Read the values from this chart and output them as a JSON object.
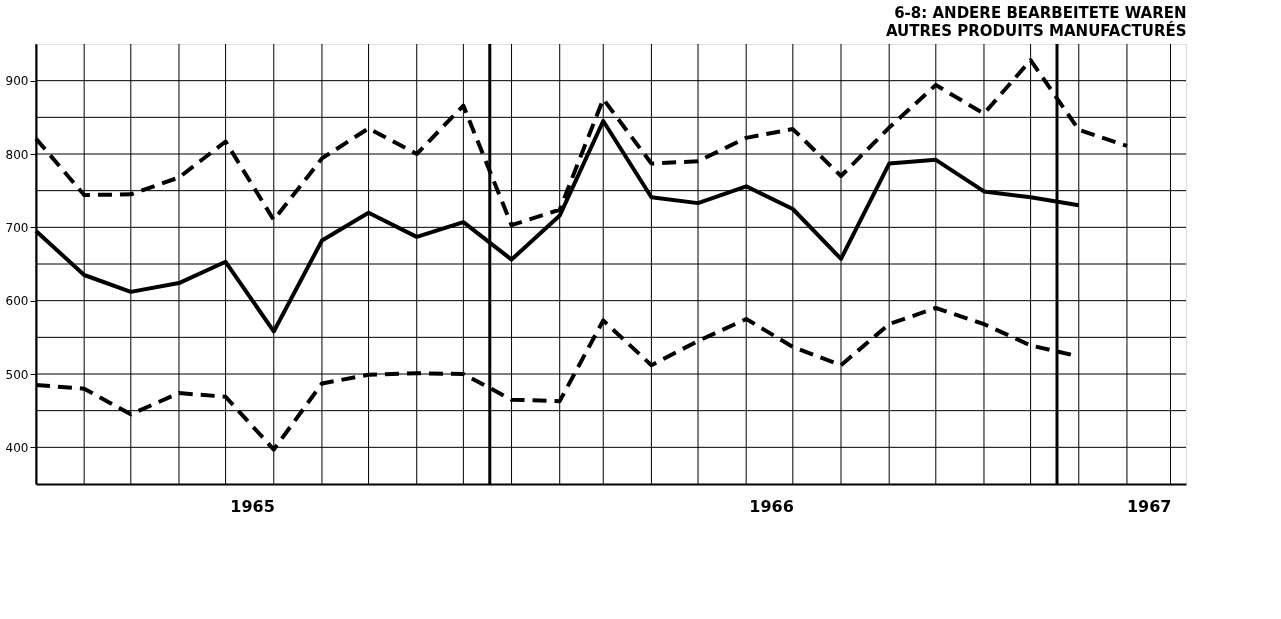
{
  "chart_data": {
    "type": "line",
    "title": "6-8: ANDERE BEARBEITETE WAREN",
    "subtitle": "AUTRES PRODUITS MANUFACTURÉS",
    "x": [
      "1965-03-15",
      "1965-04-15",
      "1965-05-15",
      "1965-06-15",
      "1965-07-15",
      "1965-08-15",
      "1965-09-15",
      "1965-10-15",
      "1965-11-15",
      "1965-12-15",
      "1966-01-15",
      "1966-02-15",
      "1966-03-15",
      "1966-04-15",
      "1966-05-15",
      "1966-06-15",
      "1966-07-15",
      "1966-08-15",
      "1966-09-15",
      "1966-10-15",
      "1966-11-15",
      "1966-12-15",
      "1967-01-15",
      "1967-02-15"
    ],
    "series": [
      {
        "color": "#000000",
        "line_style": "dashed",
        "values": [
          821,
          744,
          745,
          768,
          817,
          710,
          794,
          835,
          800,
          866,
          703,
          724,
          875,
          787,
          790,
          822,
          834,
          770,
          836,
          894,
          855,
          928,
          833,
          811
        ]
      },
      {
        "color": "#000000",
        "line_style": "solid",
        "values": [
          695,
          635,
          612,
          624,
          653,
          558,
          682,
          720,
          687,
          707,
          656,
          716,
          845,
          741,
          733,
          756,
          725,
          657,
          787,
          792,
          749,
          741,
          730,
          null
        ]
      },
      {
        "color": "#000000",
        "line_style": "dashed",
        "values": [
          485,
          480,
          445,
          474,
          469,
          397,
          487,
          499,
          501,
          500,
          465,
          463,
          573,
          512,
          545,
          575,
          537,
          512,
          568,
          590,
          568,
          539,
          524,
          null
        ]
      }
    ],
    "xlim": [
      "1965-03-15",
      "1967-03-25"
    ],
    "xticks": [
      {
        "value": "1965-08-01",
        "label": "1965"
      },
      {
        "value": "1966-07-01",
        "label": "1966"
      },
      {
        "value": "1967-03-01",
        "label": "1967"
      }
    ],
    "ylim": [
      350,
      950
    ],
    "yticks": [
      400,
      {
        "value": 450,
        "label": null
      },
      500,
      {
        "value": 550,
        "label": null
      },
      600,
      {
        "value": 650,
        "label": null
      },
      700,
      {
        "value": 750,
        "label": null
      },
      800,
      {
        "value": 850,
        "label": null
      },
      900
    ],
    "ref_lines": [
      {
        "axis": "x",
        "value": "1966-01-01",
        "label": null
      },
      {
        "axis": "x",
        "value": "1967-01-01",
        "label": null
      }
    ],
    "grid": true,
    "marker": "none"
  }
}
